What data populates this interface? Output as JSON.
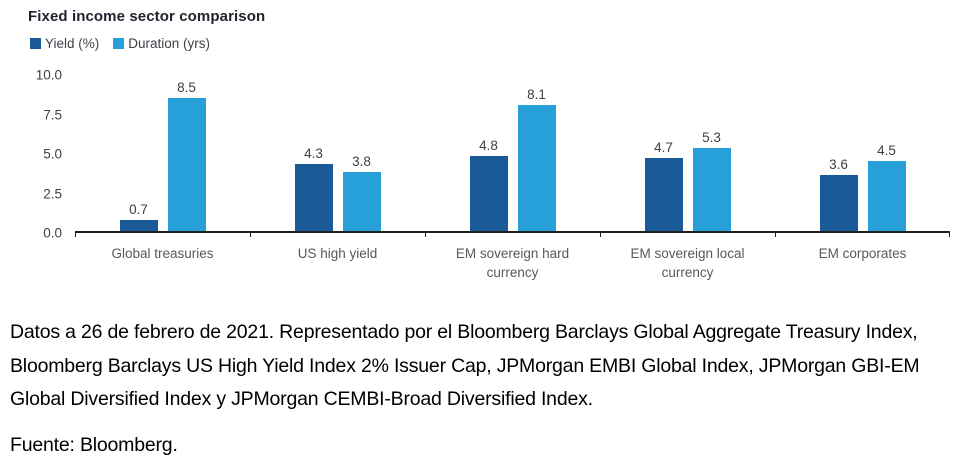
{
  "chart": {
    "title": "Fixed income sector comparison"
  },
  "chart_data": {
    "type": "bar",
    "title": "Fixed income sector comparison",
    "categories": [
      "Global treasuries",
      "US high yield",
      "EM sovereign hard currency",
      "EM sovereign local currency",
      "EM corporates"
    ],
    "series": [
      {
        "name": "Yield (%)",
        "color": "#1a5a96",
        "values": [
          0.7,
          4.3,
          4.8,
          4.7,
          3.6
        ]
      },
      {
        "name": "Duration (yrs)",
        "color": "#27a0da",
        "values": [
          8.5,
          3.8,
          8.1,
          5.3,
          4.5
        ]
      }
    ],
    "xlabel": "",
    "ylabel": "",
    "ylim": [
      0,
      10
    ],
    "yticks": [
      "0.0",
      "2.5",
      "5.0",
      "7.5",
      "10.0"
    ],
    "grid": false,
    "legend_position": "top-left",
    "value_labels": true
  },
  "footnote": {
    "text": "Datos a 26 de febrero de 2021. Representado por el Bloomberg Barclays Global Aggregate Treasury Index, Bloomberg Barclays US High Yield Index 2% Issuer Cap, JPMorgan EMBI Global Index, JPMorgan GBI-EM Global Diversified Index y JPMorgan CEMBI-Broad Diversified Index.",
    "source": "Fuente: Bloomberg."
  }
}
